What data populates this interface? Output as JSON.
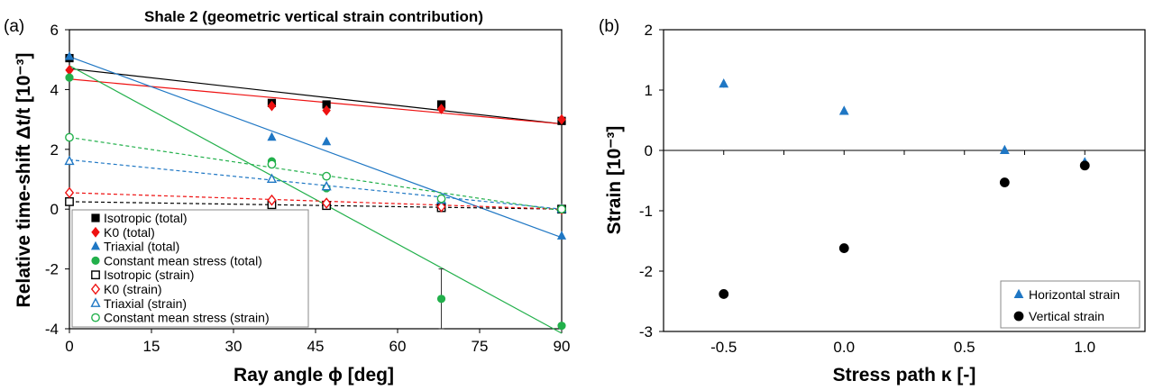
{
  "chart_data": [
    {
      "type": "scatter",
      "panel_label": "(a)",
      "title": "Shale 2 (geometric vertical strain contribution)",
      "xlabel": "Ray angle ϕ [deg]",
      "ylabel": "Relative time-shift Δt/t [10⁻³]",
      "xlim": [
        0,
        90
      ],
      "ylim": [
        -4,
        6
      ],
      "xticks": [
        "0",
        "15",
        "30",
        "45",
        "60",
        "75",
        "90"
      ],
      "yticks": [
        "-4",
        "-2",
        "0",
        "2",
        "4",
        "6"
      ],
      "legend_position": "bottom-left",
      "series": [
        {
          "name": "Isotropic (total)",
          "marker": "square-filled",
          "color": "#000000",
          "x": [
            0,
            37,
            47,
            68,
            90
          ],
          "y": [
            5.05,
            3.55,
            3.5,
            3.5,
            2.95
          ],
          "fit": [
            [
              0,
              4.7
            ],
            [
              90,
              2.85
            ]
          ],
          "fit_style": "solid"
        },
        {
          "name": "K0 (total)",
          "marker": "diamond-filled",
          "color": "#ee1111",
          "x": [
            0,
            37,
            47,
            68,
            90
          ],
          "y": [
            4.65,
            3.45,
            3.3,
            3.35,
            3.0
          ],
          "fit": [
            [
              0,
              4.35
            ],
            [
              90,
              2.85
            ]
          ],
          "fit_style": "solid"
        },
        {
          "name": "Triaxial (total)",
          "marker": "triangle-filled",
          "color": "#1f77c4",
          "x": [
            0,
            37,
            47,
            68,
            90
          ],
          "y": [
            5.1,
            2.4,
            2.25,
            0.3,
            -0.9
          ],
          "fit": [
            [
              0,
              5.1
            ],
            [
              90,
              -0.95
            ]
          ],
          "fit_style": "solid"
        },
        {
          "name": "Constant mean stress (total)",
          "marker": "circle-filled",
          "color": "#22b04b",
          "x": [
            0,
            37,
            47,
            68,
            90
          ],
          "y": [
            4.4,
            1.6,
            0.7,
            -3.0,
            -3.9
          ],
          "fit": [
            [
              0,
              4.8
            ],
            [
              90,
              -4.15
            ]
          ],
          "fit_style": "solid",
          "errorbar": {
            "x": 68,
            "low": -4.0,
            "high": -2.0
          }
        },
        {
          "name": "Isotropic (strain)",
          "marker": "square-open",
          "color": "#000000",
          "x": [
            0,
            37,
            47,
            68,
            90
          ],
          "y": [
            0.25,
            0.15,
            0.12,
            0.05,
            0.0
          ],
          "fit": [
            [
              0,
              0.25
            ],
            [
              90,
              0.0
            ]
          ],
          "fit_style": "dashed"
        },
        {
          "name": "K0 (strain)",
          "marker": "diamond-open",
          "color": "#ee1111",
          "x": [
            0,
            37,
            47,
            68,
            90
          ],
          "y": [
            0.55,
            0.3,
            0.2,
            0.08,
            0.0
          ],
          "fit": [
            [
              0,
              0.55
            ],
            [
              90,
              0.0
            ]
          ],
          "fit_style": "dashed"
        },
        {
          "name": "Triaxial (strain)",
          "marker": "triangle-open",
          "color": "#1f77c4",
          "x": [
            0,
            37,
            47,
            68,
            90
          ],
          "y": [
            1.6,
            1.0,
            0.75,
            0.3,
            0.0
          ],
          "fit": [
            [
              0,
              1.65
            ],
            [
              90,
              0.0
            ]
          ],
          "fit_style": "dashed"
        },
        {
          "name": "Constant mean stress (strain)",
          "marker": "circle-open",
          "color": "#22b04b",
          "x": [
            0,
            37,
            47,
            68,
            90
          ],
          "y": [
            2.4,
            1.5,
            1.1,
            0.35,
            0.0
          ],
          "fit": [
            [
              0,
              2.4
            ],
            [
              90,
              -0.05
            ]
          ],
          "fit_style": "dashed"
        }
      ]
    },
    {
      "type": "scatter",
      "panel_label": "(b)",
      "xlabel": "Stress path κ [-]",
      "ylabel": "Strain [10⁻³]",
      "xlim": [
        -0.75,
        1.25
      ],
      "ylim": [
        -3,
        2
      ],
      "xticks": [
        "-0.5",
        "0.0",
        "0.5",
        "1.0"
      ],
      "xtick_values": [
        -0.5,
        0.0,
        0.5,
        1.0
      ],
      "yticks": [
        "-3",
        "-2",
        "-1",
        "0",
        "1",
        "2"
      ],
      "legend_position": "bottom-right",
      "series": [
        {
          "name": "Horizontal strain",
          "marker": "triangle-filled",
          "color": "#1f77c4",
          "x": [
            -0.5,
            0.0,
            0.667,
            1.0
          ],
          "y": [
            1.1,
            0.65,
            0.0,
            -0.2
          ],
          "err": [
            0.06,
            0.05,
            0.05,
            0.05
          ]
        },
        {
          "name": "Vertical strain",
          "marker": "circle-filled",
          "color": "#000000",
          "x": [
            -0.5,
            0.0,
            0.667,
            1.0
          ],
          "y": [
            -2.38,
            -1.62,
            -0.53,
            -0.25
          ]
        }
      ]
    }
  ]
}
